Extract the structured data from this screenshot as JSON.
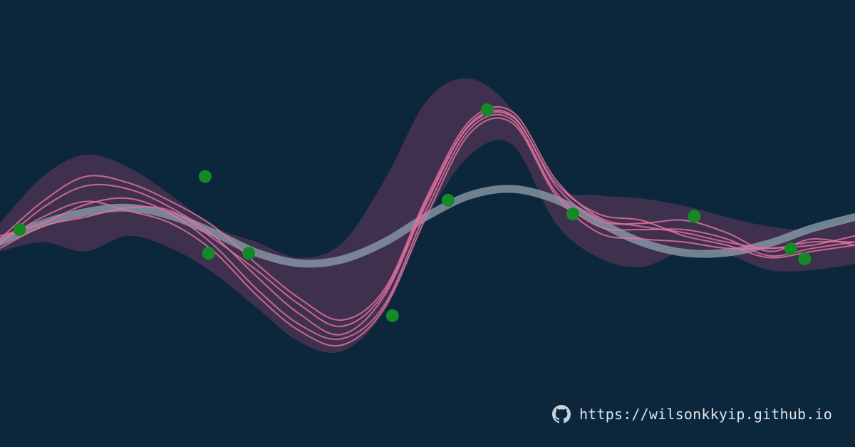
{
  "footer": {
    "url_text": "https://wilsonkkyip.github.io",
    "icon": "github-icon"
  },
  "colors": {
    "background": "#0c263b",
    "mean_curve": "#8a9aa9",
    "band": "#6a3a5e",
    "samples": "#e0719f",
    "points": "#138a26"
  },
  "chart_data": {
    "type": "line",
    "title": "",
    "xlabel": "",
    "ylabel": "",
    "grid": false,
    "legend": "none",
    "xlim": [
      0,
      100
    ],
    "ylim": [
      -3,
      3
    ],
    "x": [
      0,
      5,
      10,
      15,
      20,
      25,
      30,
      35,
      40,
      45,
      50,
      55,
      60,
      65,
      70,
      75,
      80,
      85,
      90,
      95,
      100
    ],
    "mean": [
      -0.2,
      0.1,
      0.28,
      0.35,
      0.22,
      -0.05,
      -0.37,
      -0.54,
      -0.48,
      -0.2,
      0.22,
      0.55,
      0.65,
      0.48,
      0.12,
      -0.2,
      -0.37,
      -0.37,
      -0.22,
      0.02,
      0.2
    ],
    "band_upper": [
      0.1,
      0.85,
      1.2,
      1.0,
      0.55,
      0.05,
      -0.2,
      -0.45,
      -0.22,
      0.8,
      2.08,
      2.42,
      1.9,
      0.7,
      0.55,
      0.5,
      0.38,
      0.2,
      0.05,
      0.0,
      0.2
    ],
    "band_lower": [
      -0.35,
      -0.2,
      -0.35,
      -0.1,
      -0.3,
      -0.7,
      -1.25,
      -1.8,
      -1.95,
      -1.3,
      0.2,
      1.2,
      1.35,
      0.1,
      -0.45,
      -0.6,
      -0.35,
      -0.4,
      -0.65,
      -0.65,
      -0.55
    ],
    "series": [
      {
        "values": [
          -0.15,
          0.45,
          0.85,
          0.75,
          0.45,
          0.05,
          -0.55,
          -1.1,
          -1.45,
          -0.95,
          0.55,
          1.75,
          1.88,
          0.8,
          0.2,
          0.05,
          -0.05,
          -0.2,
          -0.3,
          -0.2,
          -0.2
        ]
      },
      {
        "values": [
          -0.22,
          0.35,
          0.7,
          0.65,
          0.35,
          -0.1,
          -0.75,
          -1.35,
          -1.68,
          -1.05,
          0.45,
          1.7,
          1.82,
          0.7,
          0.15,
          0.1,
          0.15,
          -0.05,
          -0.35,
          -0.15,
          -0.25
        ]
      },
      {
        "values": [
          -0.1,
          0.1,
          0.4,
          0.5,
          0.25,
          -0.25,
          -0.95,
          -1.52,
          -1.75,
          -1.2,
          0.35,
          1.62,
          1.75,
          0.6,
          0.05,
          0.0,
          0.0,
          -0.15,
          -0.42,
          -0.3,
          -0.2
        ]
      },
      {
        "values": [
          -0.2,
          0.2,
          0.45,
          0.3,
          0.1,
          -0.35,
          -1.05,
          -1.62,
          -1.85,
          -1.25,
          0.25,
          1.55,
          1.7,
          0.55,
          -0.05,
          -0.15,
          -0.2,
          -0.3,
          -0.3,
          -0.25,
          -0.1
        ]
      },
      {
        "values": [
          -0.3,
          0.05,
          0.2,
          0.35,
          0.3,
          -0.15,
          -0.65,
          -1.2,
          -1.55,
          -1.0,
          0.5,
          1.68,
          1.8,
          0.75,
          0.25,
          0.15,
          -0.1,
          -0.25,
          -0.45,
          -0.35,
          -0.25
        ]
      }
    ],
    "points": [
      {
        "x": 2.3,
        "y": 0.0
      },
      {
        "x": 24.0,
        "y": 0.85
      },
      {
        "x": 24.4,
        "y": -0.38
      },
      {
        "x": 29.1,
        "y": -0.38
      },
      {
        "x": 45.9,
        "y": -1.38
      },
      {
        "x": 52.4,
        "y": 0.47
      },
      {
        "x": 57.0,
        "y": 1.92
      },
      {
        "x": 67.0,
        "y": 0.25
      },
      {
        "x": 81.2,
        "y": 0.21
      },
      {
        "x": 92.5,
        "y": -0.31
      },
      {
        "x": 94.1,
        "y": -0.47
      }
    ]
  }
}
